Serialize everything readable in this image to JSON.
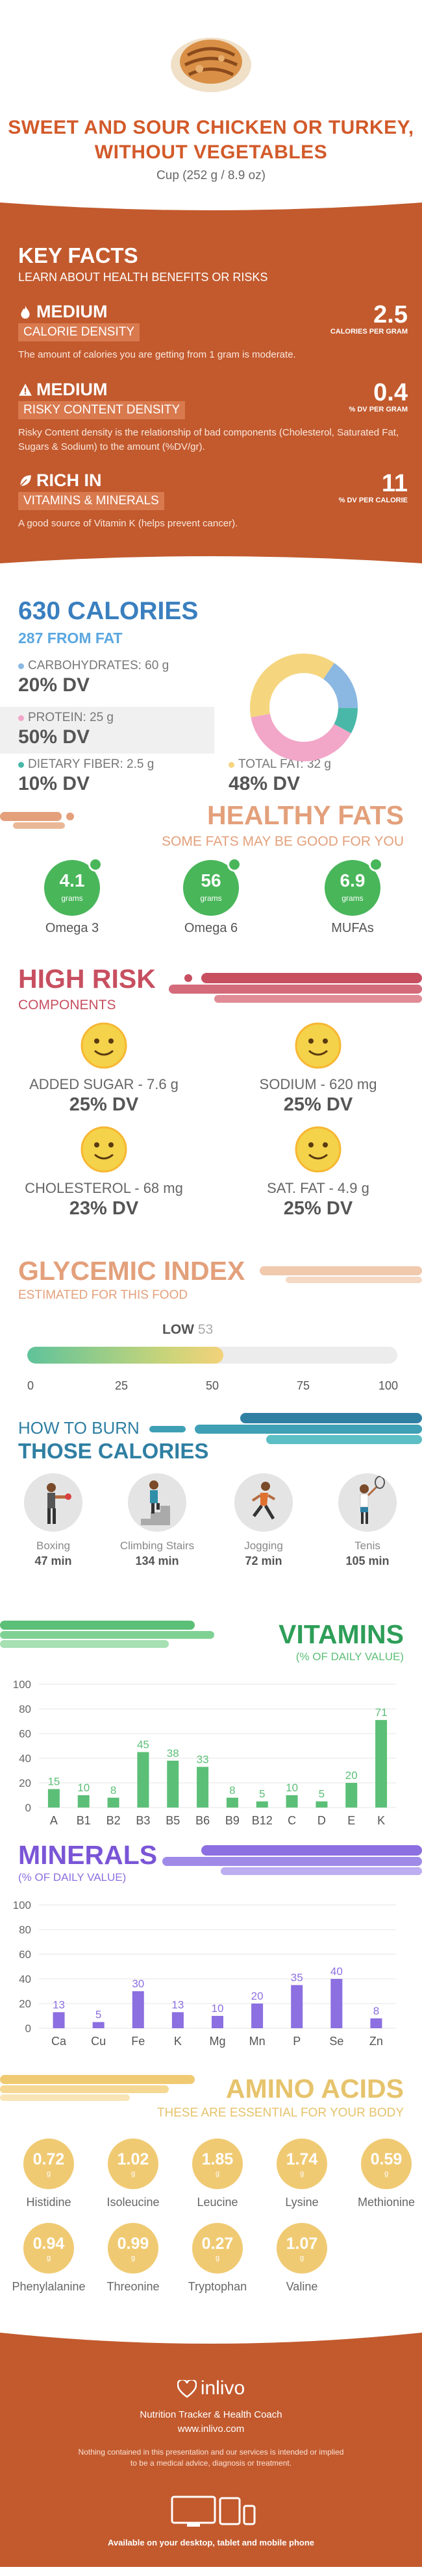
{
  "header": {
    "title": "SWEET AND SOUR CHICKEN OR TURKEY, WITHOUT VEGETABLES",
    "serving": "Cup (252 g / 8.9 oz)"
  },
  "key_facts": {
    "title": "KEY FACTS",
    "subtitle": "LEARN ABOUT HEALTH BENEFITS OR RISKS",
    "items": [
      {
        "icon": "flame-icon",
        "level": "MEDIUM",
        "label": "CALORIE DENSITY",
        "value": "2.5",
        "unit": "CALORIES PER GRAM",
        "desc": "The amount of calories you are getting from 1 gram is moderate."
      },
      {
        "icon": "warning-icon",
        "level": "MEDIUM",
        "label": "RISKY CONTENT DENSITY",
        "value": "0.4",
        "unit": "% DV PER GRAM",
        "desc": "Risky Content density is the relationship of bad components (Cholesterol, Saturated Fat, Sugars & Sodium) to the amount (%DV/gr)."
      },
      {
        "icon": "leaf-icon",
        "level": "RICH  IN",
        "label": "VITAMINS & MINERALS",
        "value": "11",
        "unit": "% DV PER CALORIE",
        "desc": "A good source of Vitamin K (helps prevent cancer)."
      }
    ]
  },
  "calories": {
    "title": "630 CALORIES",
    "from_fat": "287 FROM FAT",
    "nutrients": [
      {
        "label": "CARBOHYDRATES: 60 g",
        "dv": "20% DV",
        "color": "#8ab8e2",
        "pct": 20
      },
      {
        "label": "PROTEIN: 25 g",
        "dv": "50% DV",
        "color": "#f2a6c8",
        "pct": 50
      },
      {
        "label": "DIETARY FIBER: 2.5 g",
        "dv": "10% DV",
        "color": "#49b8a8",
        "pct": 10
      },
      {
        "label": "TOTAL FAT: 32 g",
        "dv": "48% DV",
        "color": "#f5d57e",
        "pct": 48
      }
    ]
  },
  "healthy_fats": {
    "title": "HEALTHY FATS",
    "subtitle": "SOME FATS MAY BE GOOD FOR YOU",
    "items": [
      {
        "value": "4.1",
        "unit": "grams",
        "name": "Omega 3"
      },
      {
        "value": "56",
        "unit": "grams",
        "name": "Omega 6"
      },
      {
        "value": "6.9",
        "unit": "grams",
        "name": "MUFAs"
      }
    ]
  },
  "high_risk": {
    "title": "HIGH RISK",
    "subtitle": "COMPONENTS",
    "items": [
      {
        "name": "ADDED SUGAR - 7.6 g",
        "dv": "25% DV"
      },
      {
        "name": "SODIUM - 620 mg",
        "dv": "25% DV"
      },
      {
        "name": "CHOLESTEROL - 68 mg",
        "dv": "23% DV"
      },
      {
        "name": "SAT. FAT - 4.9 g",
        "dv": "25% DV"
      }
    ]
  },
  "glycemic": {
    "title": "GLYCEMIC INDEX",
    "subtitle": "ESTIMATED FOR THIS FOOD",
    "level": "LOW",
    "value": "53",
    "value_num": 53,
    "ticks": [
      "0",
      "25",
      "50",
      "75",
      "100"
    ]
  },
  "burn": {
    "title1": "HOW TO BURN",
    "title2": "THOSE CALORIES",
    "activities": [
      {
        "name": "Boxing",
        "minutes": "47 min",
        "icon": "boxing-icon"
      },
      {
        "name": "Climbing Stairs",
        "minutes": "134 min",
        "icon": "stairs-icon"
      },
      {
        "name": "Jogging",
        "minutes": "72 min",
        "icon": "jogging-icon"
      },
      {
        "name": "Tenis",
        "minutes": "105 min",
        "icon": "tennis-icon"
      }
    ]
  },
  "vitamins": {
    "title": "VITAMINS",
    "subtitle": "(% OF DAILY VALUE)",
    "chart_data": {
      "type": "bar",
      "categories": [
        "A",
        "B1",
        "B2",
        "B3",
        "B5",
        "B6",
        "B9",
        "B12",
        "C",
        "D",
        "E",
        "K"
      ],
      "values": [
        15,
        10,
        8,
        45,
        38,
        33,
        8,
        5,
        10,
        5,
        20,
        71
      ],
      "ylim": [
        0,
        100
      ],
      "yticks": [
        0,
        20,
        40,
        60,
        80,
        100
      ],
      "color": "#5cbf77"
    }
  },
  "minerals": {
    "title": "MINERALS",
    "subtitle": "(% OF DAILY VALUE)",
    "chart_data": {
      "type": "bar",
      "categories": [
        "Ca",
        "Cu",
        "Fe",
        "K",
        "Mg",
        "Mn",
        "P",
        "Se",
        "Zn"
      ],
      "values": [
        13,
        5,
        30,
        13,
        10,
        20,
        35,
        40,
        8
      ],
      "ylim": [
        0,
        100
      ],
      "yticks": [
        0,
        20,
        40,
        60,
        80,
        100
      ],
      "color": "#8c6fe0"
    }
  },
  "amino": {
    "title": "AMINO ACIDS",
    "subtitle": "THESE ARE ESSENTIAL FOR YOUR BODY",
    "items": [
      {
        "value": "0.72",
        "unit": "g",
        "name": "Histidine"
      },
      {
        "value": "1.02",
        "unit": "g",
        "name": "Isoleucine"
      },
      {
        "value": "1.85",
        "unit": "g",
        "name": "Leucine"
      },
      {
        "value": "1.74",
        "unit": "g",
        "name": "Lysine"
      },
      {
        "value": "0.59",
        "unit": "g",
        "name": "Methionine"
      },
      {
        "value": "0.94",
        "unit": "g",
        "name": "Phenylalanine"
      },
      {
        "value": "0.99",
        "unit": "g",
        "name": "Threonine"
      },
      {
        "value": "0.27",
        "unit": "g",
        "name": "Tryptophan"
      },
      {
        "value": "1.07",
        "unit": "g",
        "name": "Valine"
      }
    ]
  },
  "footer": {
    "logo": "inlivo",
    "tagline1": "Nutrition Tracker & Health Coach",
    "tagline2": "www.inlivo.com",
    "disclaimer1": "Nothing contained in this presentation and our services is intended or implied",
    "disclaimer2": "to be a medical advice, diagnosis or treatment.",
    "available": "Available on your desktop, tablet and mobile phone"
  }
}
